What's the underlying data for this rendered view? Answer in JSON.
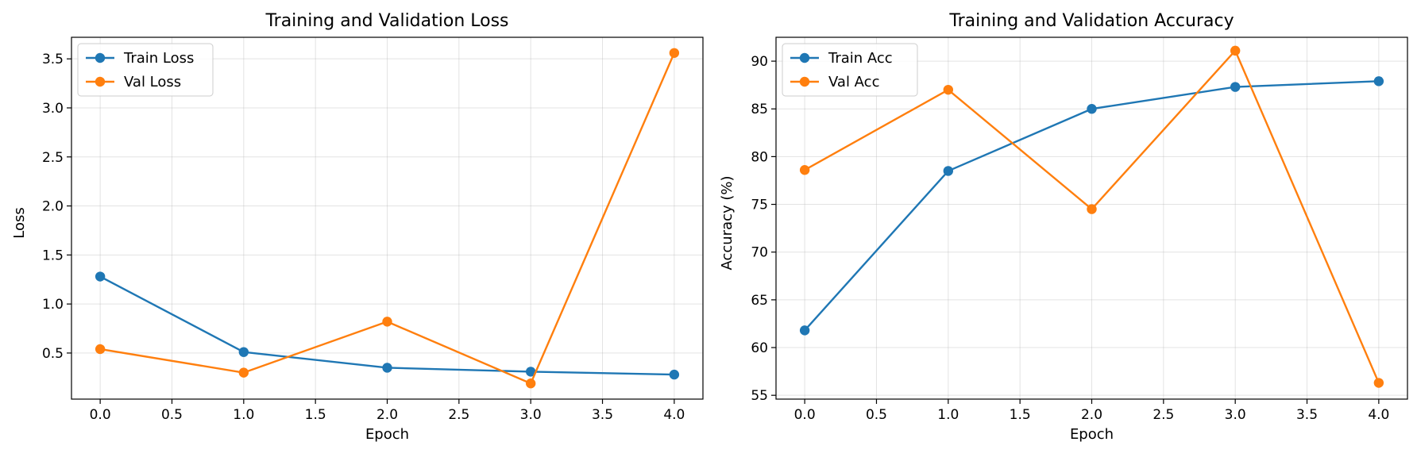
{
  "chart_data": [
    {
      "type": "line",
      "title": "Training and Validation Loss",
      "xlabel": "Epoch",
      "ylabel": "Loss",
      "x": [
        0,
        1,
        2,
        3,
        4
      ],
      "xlim": [
        -0.2,
        4.2
      ],
      "ylim": [
        0.03,
        3.72
      ],
      "xticks": [
        0.0,
        0.5,
        1.0,
        1.5,
        2.0,
        2.5,
        3.0,
        3.5,
        4.0
      ],
      "xtick_labels": [
        "0.0",
        "0.5",
        "1.0",
        "1.5",
        "2.0",
        "2.5",
        "3.0",
        "3.5",
        "4.0"
      ],
      "yticks": [
        0.5,
        1.0,
        1.5,
        2.0,
        2.5,
        3.0,
        3.5
      ],
      "ytick_labels": [
        "0.5",
        "1.0",
        "1.5",
        "2.0",
        "2.5",
        "3.0",
        "3.5"
      ],
      "grid": true,
      "legend_position": "top-left",
      "series": [
        {
          "name": "Train Loss",
          "color": "#1f77b4",
          "marker": "circle",
          "values": [
            1.28,
            0.51,
            0.35,
            0.31,
            0.28
          ]
        },
        {
          "name": "Val Loss",
          "color": "#ff7f0e",
          "marker": "circle",
          "values": [
            0.54,
            0.3,
            0.82,
            0.19,
            3.56
          ]
        }
      ]
    },
    {
      "type": "line",
      "title": "Training and Validation Accuracy",
      "xlabel": "Epoch",
      "ylabel": "Accuracy (%)",
      "x": [
        0,
        1,
        2,
        3,
        4
      ],
      "xlim": [
        -0.2,
        4.2
      ],
      "ylim": [
        54.6,
        92.5
      ],
      "xticks": [
        0.0,
        0.5,
        1.0,
        1.5,
        2.0,
        2.5,
        3.0,
        3.5,
        4.0
      ],
      "xtick_labels": [
        "0.0",
        "0.5",
        "1.0",
        "1.5",
        "2.0",
        "2.5",
        "3.0",
        "3.5",
        "4.0"
      ],
      "yticks": [
        55,
        60,
        65,
        70,
        75,
        80,
        85,
        90
      ],
      "ytick_labels": [
        "55",
        "60",
        "65",
        "70",
        "75",
        "80",
        "85",
        "90"
      ],
      "grid": true,
      "legend_position": "top-left",
      "series": [
        {
          "name": "Train Acc",
          "color": "#1f77b4",
          "marker": "circle",
          "values": [
            61.8,
            78.5,
            85.0,
            87.3,
            87.9
          ]
        },
        {
          "name": "Val Acc",
          "color": "#ff7f0e",
          "marker": "circle",
          "values": [
            78.6,
            87.0,
            74.5,
            91.1,
            56.3
          ]
        }
      ]
    }
  ]
}
